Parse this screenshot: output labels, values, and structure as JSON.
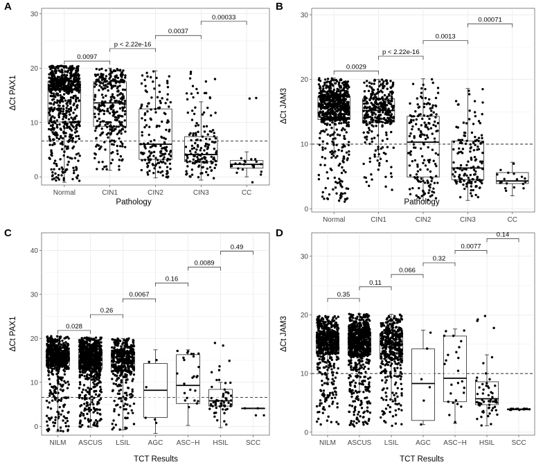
{
  "chart_data": [
    {
      "panel": "A",
      "type": "box",
      "xlabel": "Pathology",
      "ylabel": "ΔCt PAX1",
      "categories": [
        "Normal",
        "CIN1",
        "CIN2",
        "CIN3",
        "CC"
      ],
      "ylim": [
        -1.5,
        31
      ],
      "yticks": [
        0,
        10,
        20,
        30
      ],
      "cutoff": 6.6,
      "boxes": [
        {
          "min": -1,
          "q1": 10.1,
          "median": 16,
          "q3": 17.6,
          "max": 20.5,
          "n": 700
        },
        {
          "min": 1.2,
          "q1": 9.3,
          "median": 13.6,
          "q3": 17.5,
          "max": 20.0,
          "n": 330
        },
        {
          "min": -0.2,
          "q1": 3.2,
          "median": 6.0,
          "q3": 12.5,
          "max": 19.5,
          "n": 170
        },
        {
          "min": -0.6,
          "q1": 2.8,
          "median": 4.1,
          "q3": 7.4,
          "max": 13.8,
          "n": 150,
          "outlier_max": 20.0
        },
        {
          "min": 0.0,
          "q1": 1.6,
          "median": 2.3,
          "q3": 3.0,
          "max": 4.6,
          "n": 20,
          "outliers": [
            14.5,
            14.4,
            -1.0
          ]
        }
      ],
      "comparisons": [
        {
          "from": 0,
          "to": 1,
          "label": "0.0097",
          "y": 21.3
        },
        {
          "from": 1,
          "to": 2,
          "label": "p < 2.22e-16",
          "y": 23.6
        },
        {
          "from": 2,
          "to": 3,
          "label": "0.0037",
          "y": 26.0
        },
        {
          "from": 3,
          "to": 4,
          "label": "0.00033",
          "y": 28.6
        }
      ]
    },
    {
      "panel": "B",
      "type": "box",
      "xlabel": "Pathology",
      "ylabel": "ΔCt JAM3",
      "categories": [
        "Normal",
        "CIN1",
        "CIN2",
        "CIN3",
        "CC"
      ],
      "ylim": [
        -0.5,
        31
      ],
      "yticks": [
        0,
        10,
        20,
        30
      ],
      "cutoff": 10,
      "boxes": [
        {
          "min": 8.5,
          "q1": 13.8,
          "median": 15.8,
          "q3": 17.3,
          "max": 20.2,
          "n": 700,
          "outlier_min": 1.0
        },
        {
          "min": 8.0,
          "q1": 13.4,
          "median": 15.2,
          "q3": 17.0,
          "max": 20.0,
          "n": 330,
          "outlier_min": 2.5
        },
        {
          "min": 1.3,
          "q1": 4.9,
          "median": 10.3,
          "q3": 14.3,
          "max": 20.1,
          "n": 170
        },
        {
          "min": 1.3,
          "q1": 4.5,
          "median": 6.3,
          "q3": 10.5,
          "max": 18.6,
          "n": 150
        },
        {
          "min": 2.0,
          "q1": 3.9,
          "median": 4.3,
          "q3": 5.6,
          "max": 7.2,
          "n": 18
        }
      ],
      "comparisons": [
        {
          "from": 0,
          "to": 1,
          "label": "0.0029",
          "y": 21.3
        },
        {
          "from": 1,
          "to": 2,
          "label": "p < 2.22e-16",
          "y": 23.6
        },
        {
          "from": 2,
          "to": 3,
          "label": "0.0013",
          "y": 26.0
        },
        {
          "from": 3,
          "to": 4,
          "label": "0.00071",
          "y": 28.6
        }
      ]
    },
    {
      "panel": "C",
      "type": "box",
      "xlabel": "TCT Results",
      "ylabel": "ΔCt PAX1",
      "categories": [
        "NILM",
        "ASCUS",
        "LSIL",
        "AGC",
        "ASC−H",
        "HSIL",
        "SCC"
      ],
      "ylim": [
        -2,
        44
      ],
      "yticks": [
        0,
        10,
        20,
        30,
        40
      ],
      "cutoff": 6.6,
      "boxes": [
        {
          "min": -1.2,
          "q1": 13.8,
          "median": 15.6,
          "q3": 17.3,
          "max": 20.5,
          "n": 650
        },
        {
          "min": -0.2,
          "q1": 13.1,
          "median": 15.1,
          "q3": 17.0,
          "max": 20.2,
          "n": 800
        },
        {
          "min": -0.8,
          "q1": 12.5,
          "median": 14.7,
          "q3": 16.9,
          "max": 20.0,
          "n": 450
        },
        {
          "min": -1.6,
          "q1": 2.0,
          "median": 8.2,
          "q3": 14.3,
          "max": 17.4,
          "n": 6
        },
        {
          "min": 0.2,
          "q1": 5.2,
          "median": 9.3,
          "q3": 16.3,
          "max": 17.4,
          "n": 25
        },
        {
          "min": -0.3,
          "q1": 4.6,
          "median": 5.8,
          "q3": 8.4,
          "max": 10.0,
          "n": 60,
          "outlier_max": 20.0
        },
        {
          "min": 4.1,
          "q1": 4.1,
          "median": 4.1,
          "q3": 4.1,
          "max": 4.1,
          "n": 2,
          "outliers": [
            2.5,
            2.5
          ]
        }
      ],
      "comparisons": [
        {
          "from": 0,
          "to": 1,
          "label": "0.028",
          "y": 21.8
        },
        {
          "from": 1,
          "to": 2,
          "label": "0.26",
          "y": 25.4
        },
        {
          "from": 2,
          "to": 3,
          "label": "0.0067",
          "y": 29.0
        },
        {
          "from": 3,
          "to": 4,
          "label": "0.16",
          "y": 32.6
        },
        {
          "from": 4,
          "to": 5,
          "label": "0.0089",
          "y": 36.2
        },
        {
          "from": 5,
          "to": 6,
          "label": "0.49",
          "y": 39.8
        }
      ]
    },
    {
      "panel": "D",
      "type": "box",
      "xlabel": "TCT Results",
      "ylabel": "ΔCt JAM3",
      "categories": [
        "NILM",
        "ASCUS",
        "LSIL",
        "AGC",
        "ASC−H",
        "HSIL",
        "SCC"
      ],
      "ylim": [
        -0.5,
        34
      ],
      "yticks": [
        0,
        10,
        20,
        30
      ],
      "cutoff": 10,
      "boxes": [
        {
          "min": 8.5,
          "q1": 13.5,
          "median": 15.3,
          "q3": 16.7,
          "max": 19.8,
          "n": 650,
          "outlier_min": 1.0
        },
        {
          "min": 7.0,
          "q1": 13.2,
          "median": 15.1,
          "q3": 16.9,
          "max": 20.2,
          "n": 800,
          "outlier_min": 1.0
        },
        {
          "min": 5.6,
          "q1": 12.5,
          "median": 15.0,
          "q3": 16.8,
          "max": 20.1,
          "n": 450,
          "outlier_min": 1.0
        },
        {
          "min": 1.3,
          "q1": 2.0,
          "median": 8.3,
          "q3": 14.2,
          "max": 17.4,
          "n": 6
        },
        {
          "min": 1.5,
          "q1": 5.2,
          "median": 9.2,
          "q3": 16.4,
          "max": 17.6,
          "n": 25
        },
        {
          "min": 1.1,
          "q1": 4.7,
          "median": 5.7,
          "q3": 8.6,
          "max": 13.2,
          "n": 60,
          "outlier_max": 20.0
        },
        {
          "min": 3.8,
          "q1": 3.8,
          "median": 3.9,
          "q3": 4.0,
          "max": 4.0,
          "n": 12
        }
      ],
      "comparisons": [
        {
          "from": 0,
          "to": 1,
          "label": "0.35",
          "y": 22.8
        },
        {
          "from": 1,
          "to": 2,
          "label": "0.11",
          "y": 24.8
        },
        {
          "from": 2,
          "to": 3,
          "label": "0.066",
          "y": 26.9
        },
        {
          "from": 3,
          "to": 4,
          "label": "0.32",
          "y": 28.9
        },
        {
          "from": 4,
          "to": 5,
          "label": "0.0077",
          "y": 31.0
        },
        {
          "from": 5,
          "to": 6,
          "label": "0.14",
          "y": 33.0
        }
      ]
    }
  ]
}
